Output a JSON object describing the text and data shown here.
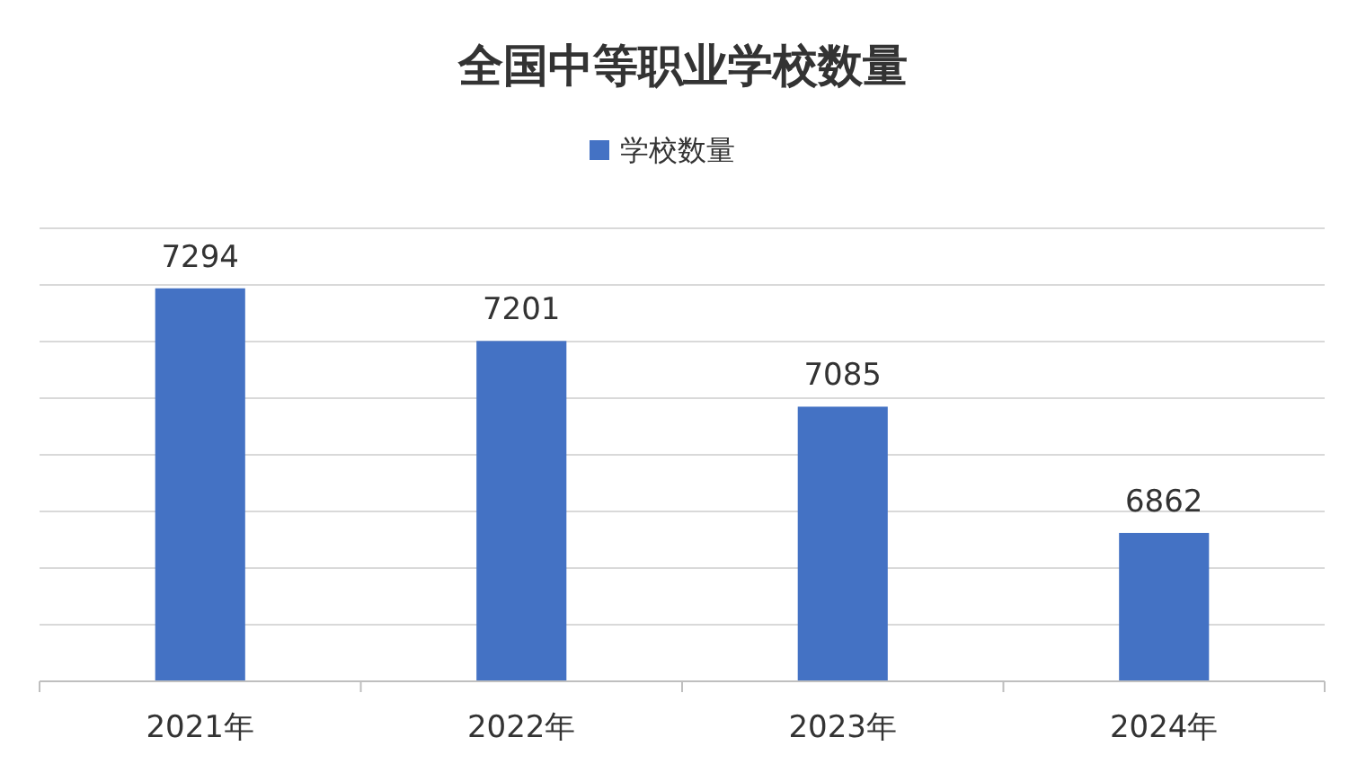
{
  "chart_data": {
    "type": "bar",
    "title": "全国中等职业学校数量",
    "categories": [
      "2021年",
      "2022年",
      "2023年",
      "2024年"
    ],
    "series": [
      {
        "name": "学校数量",
        "color": "#4472c4",
        "values": [
          7294,
          7201,
          7085,
          6862
        ]
      }
    ],
    "ylim": [
      6600,
      7400
    ],
    "yticks": [
      {
        "value": 6600,
        "label": null
      },
      {
        "value": 6700,
        "label": null
      },
      {
        "value": 6800,
        "label": null
      },
      {
        "value": 6900,
        "label": null
      },
      {
        "value": 7000,
        "label": null
      },
      {
        "value": 7100,
        "label": null
      },
      {
        "value": 7200,
        "label": null
      },
      {
        "value": 7300,
        "label": null
      },
      {
        "value": 7400,
        "label": null
      }
    ],
    "tick_labels": "x",
    "grid": "y",
    "legend": "top",
    "data_labels": true
  }
}
